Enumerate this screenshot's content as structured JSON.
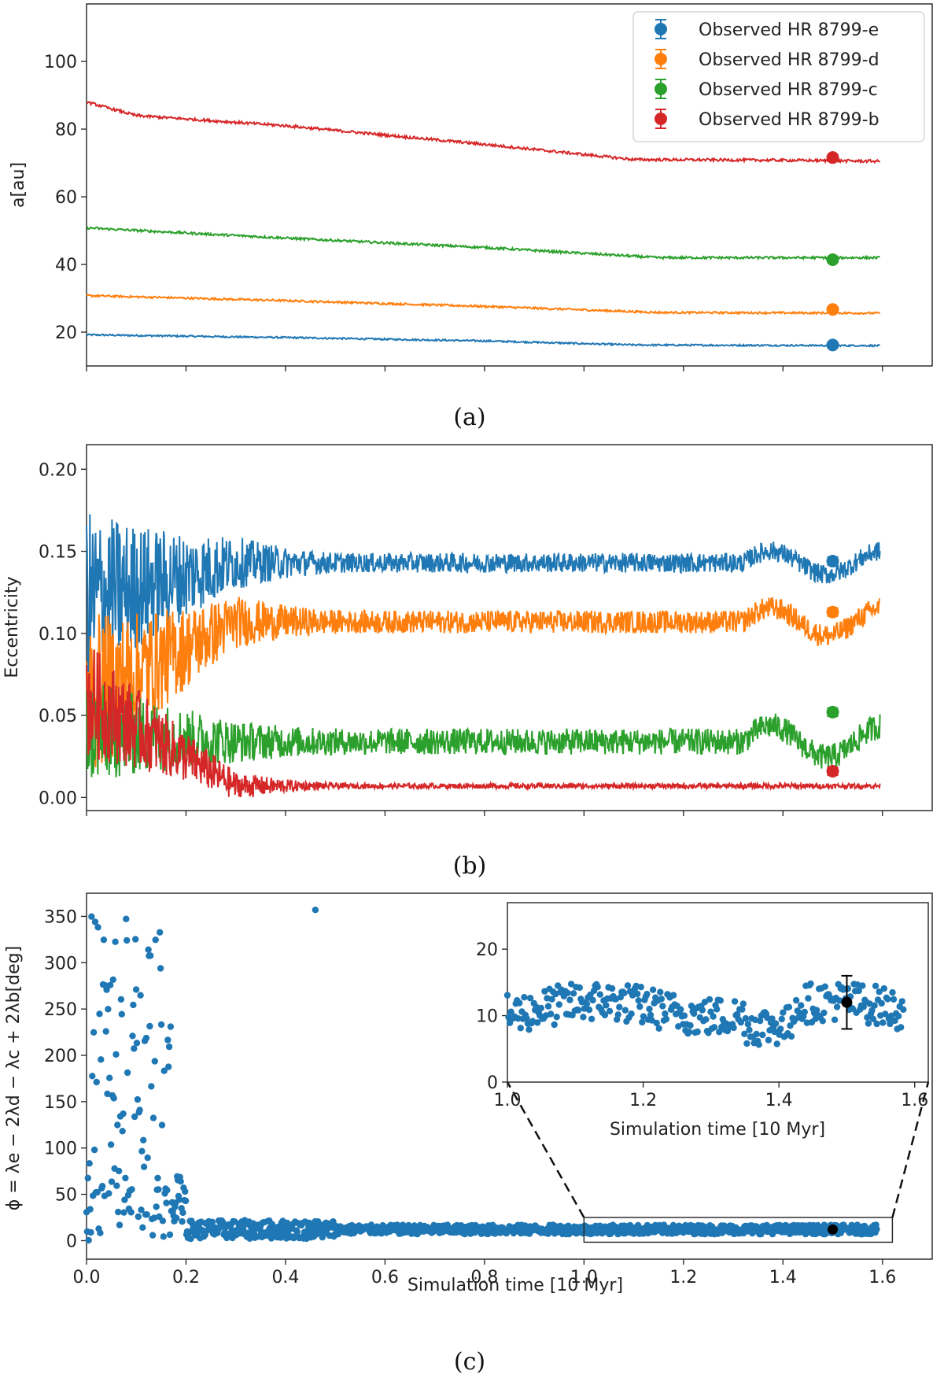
{
  "figure": {
    "width": 1200,
    "height": 1751
  },
  "chart_data": [
    {
      "id": "a",
      "type": "line",
      "caption": "(a)",
      "xlabel": "",
      "ylabel": "a[au]",
      "xlim": [
        0,
        1.7
      ],
      "ylim": [
        10,
        117
      ],
      "yticks": [
        20,
        40,
        60,
        80,
        100
      ],
      "xticks_unlabeled": [
        0.0,
        0.2,
        0.4,
        0.6,
        0.8,
        1.0,
        1.2,
        1.4,
        1.6
      ],
      "series": [
        {
          "name": "HR 8799-e",
          "color": "#1f77b4",
          "x": [
            0.0,
            0.4,
            0.8,
            1.1,
            1.6
          ],
          "y": [
            19.2,
            18.4,
            17.4,
            16.2,
            16.0
          ],
          "noise": 0.25
        },
        {
          "name": "HR 8799-d",
          "color": "#ff7f0e",
          "x": [
            0.0,
            0.4,
            0.8,
            1.15,
            1.6
          ],
          "y": [
            30.8,
            29.3,
            27.6,
            25.8,
            25.6
          ],
          "noise": 0.3
        },
        {
          "name": "HR 8799-c",
          "color": "#2ca02c",
          "x": [
            0.0,
            0.4,
            0.8,
            1.15,
            1.6
          ],
          "y": [
            50.8,
            47.8,
            45.0,
            42.0,
            42.0
          ],
          "noise": 0.35
        },
        {
          "name": "HR 8799-b",
          "color": "#d62728",
          "x": [
            0.0,
            0.1,
            0.4,
            0.8,
            1.1,
            1.4,
            1.6
          ],
          "y": [
            88.0,
            84.0,
            81.0,
            75.5,
            71.0,
            70.8,
            70.5
          ],
          "noise": 0.4
        }
      ],
      "observed": [
        {
          "label": "Observed HR 8799-e",
          "color": "#1f77b4",
          "x": 1.5,
          "y": 16.2,
          "err": 0.5
        },
        {
          "label": "Observed HR 8799-d",
          "color": "#ff7f0e",
          "x": 1.5,
          "y": 26.7,
          "err": 0.5
        },
        {
          "label": "Observed HR 8799-c",
          "color": "#2ca02c",
          "x": 1.5,
          "y": 41.4,
          "err": 0.5
        },
        {
          "label": "Observed HR 8799-b",
          "color": "#d62728",
          "x": 1.5,
          "y": 71.6,
          "err": 0.6
        }
      ],
      "legend_position": "top-right"
    },
    {
      "id": "b",
      "type": "line",
      "caption": "(b)",
      "xlabel": "",
      "ylabel": "Eccentricity",
      "xlim": [
        0,
        1.7
      ],
      "ylim": [
        -0.008,
        0.215
      ],
      "yticks": [
        0.0,
        0.05,
        0.1,
        0.15,
        0.2
      ],
      "ytick_labels": [
        "0.00",
        "0.05",
        "0.10",
        "0.15",
        "0.20"
      ],
      "xticks_unlabeled": [
        0.0,
        0.2,
        0.4,
        0.6,
        0.8,
        1.0,
        1.2,
        1.4,
        1.6
      ],
      "series": [
        {
          "name": "HR 8799-e",
          "color": "#1f77b4",
          "base": 0.143,
          "start": 0.12,
          "amp": 0.006,
          "init_amp": 0.05
        },
        {
          "name": "HR 8799-d",
          "color": "#ff7f0e",
          "base": 0.107,
          "start": 0.06,
          "amp": 0.007,
          "init_amp": 0.045
        },
        {
          "name": "HR 8799-c",
          "color": "#2ca02c",
          "base": 0.034,
          "start": 0.04,
          "amp": 0.008,
          "init_amp": 0.025
        },
        {
          "name": "HR 8799-b",
          "color": "#d62728",
          "base": 0.007,
          "start": 0.06,
          "amp": 0.0015,
          "init_amp": 0.035
        }
      ],
      "observed": [
        {
          "label": "HR 8799-e",
          "color": "#1f77b4",
          "x": 1.5,
          "y": 0.144,
          "err": 0.002
        },
        {
          "label": "HR 8799-d",
          "color": "#ff7f0e",
          "x": 1.5,
          "y": 0.113,
          "err": 0.002
        },
        {
          "label": "HR 8799-c",
          "color": "#2ca02c",
          "x": 1.5,
          "y": 0.052,
          "err": 0.002
        },
        {
          "label": "HR 8799-b",
          "color": "#d62728",
          "x": 1.5,
          "y": 0.016,
          "err": 0.002
        }
      ]
    },
    {
      "id": "c",
      "type": "scatter",
      "caption": "(c)",
      "xlabel": "Simulation time [10 Myr]",
      "ylabel": "ϕ = λe − 2λd − λc + 2λb[deg]",
      "xlim": [
        0,
        1.7
      ],
      "ylim": [
        -20,
        375
      ],
      "yticks": [
        0,
        50,
        100,
        150,
        200,
        250,
        300,
        350
      ],
      "xticks": [
        0.0,
        0.2,
        0.4,
        0.6,
        0.8,
        1.0,
        1.2,
        1.4,
        1.6
      ],
      "xtick_labels": [
        "0.0",
        "0.2",
        "0.4",
        "0.6",
        "0.8",
        "1.0",
        "1.2",
        "1.4",
        "1.6"
      ],
      "color": "#1f77b4",
      "observed": {
        "x": 1.5,
        "y": 12,
        "err": 4,
        "color": "#000000"
      },
      "zoom_box": {
        "x": [
          1.0,
          1.62
        ],
        "y": [
          0,
          25
        ]
      },
      "inset": {
        "xlabel": "Simulation time [10 Myr]",
        "xlim": [
          1.0,
          1.62
        ],
        "ylim": [
          0,
          27
        ],
        "xticks": [
          1.0,
          1.2,
          1.4,
          1.6
        ],
        "xtick_labels": [
          "1.0",
          "1.2",
          "1.4",
          "1.6"
        ],
        "yticks": [
          0,
          10,
          20
        ],
        "ytick_labels": [
          "0",
          "10",
          "20"
        ]
      }
    }
  ]
}
